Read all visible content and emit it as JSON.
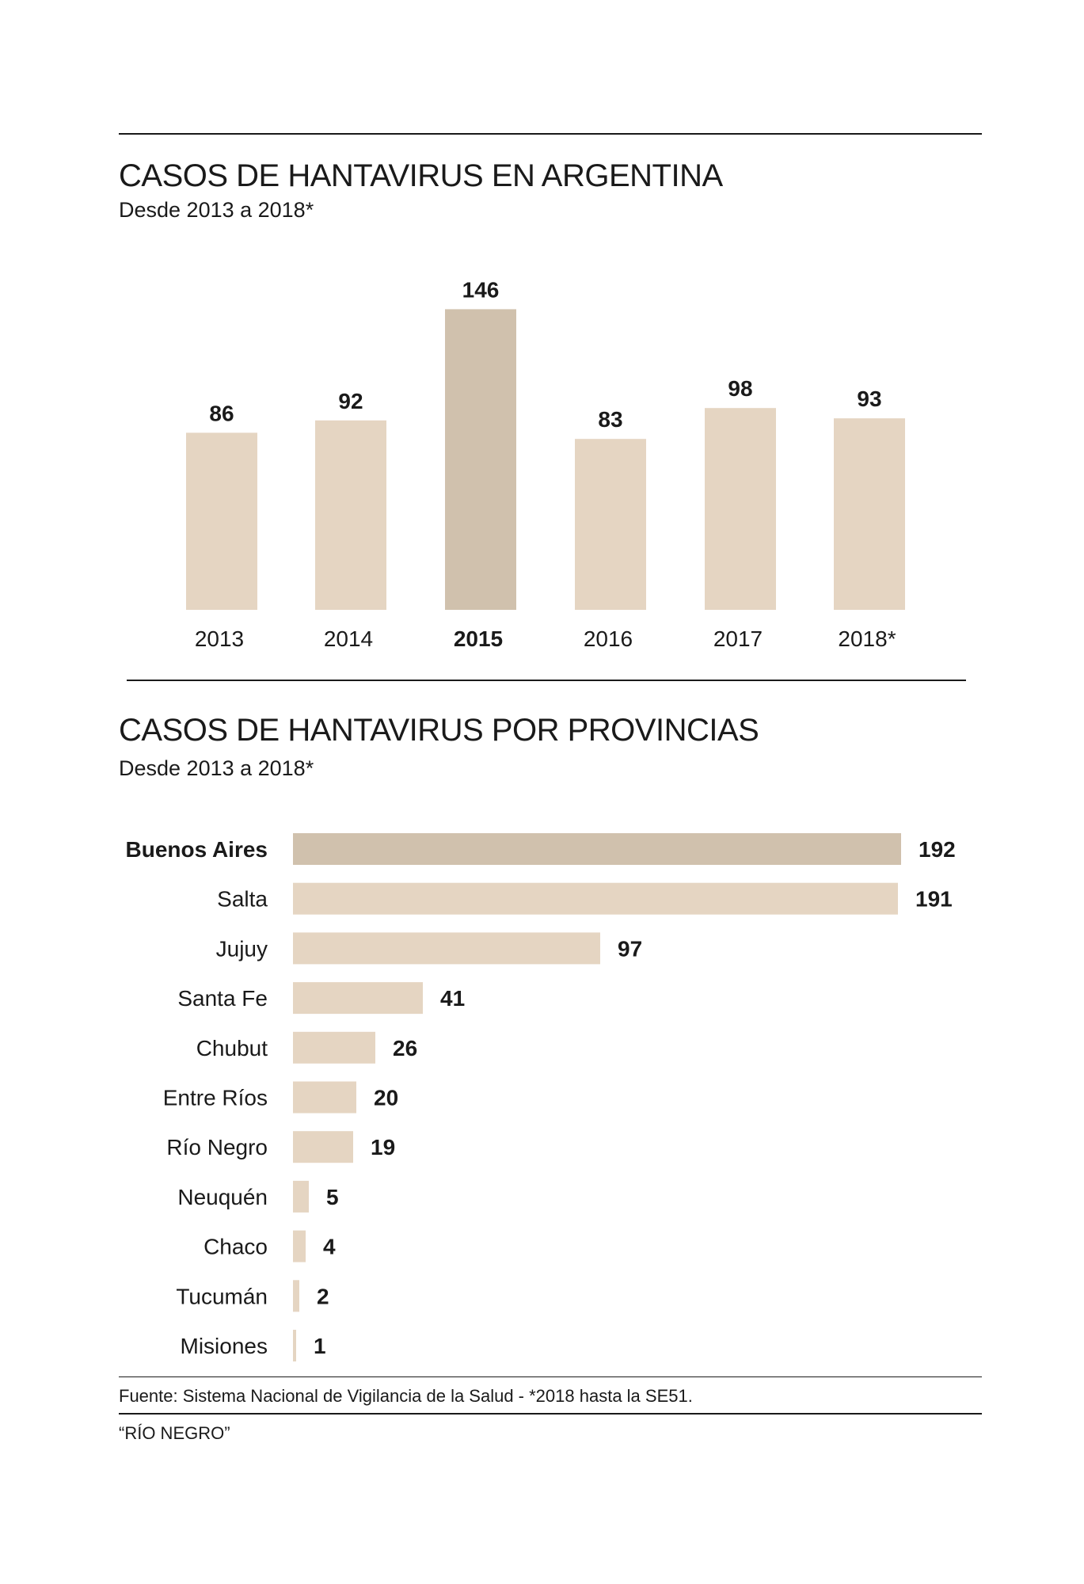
{
  "chart_data": [
    {
      "type": "bar",
      "title": "CASOS DE HANTAVIRUS EN ARGENTINA",
      "subtitle": "Desde 2013 a 2018*",
      "categories": [
        "2013",
        "2014",
        "2015",
        "2016",
        "2017",
        "2018*"
      ],
      "values": [
        86,
        92,
        146,
        83,
        98,
        93
      ],
      "highlight": "2015",
      "colors": {
        "bar": "#e5d5c2",
        "highlight": "#d0c1ad"
      }
    },
    {
      "type": "bar",
      "orientation": "horizontal",
      "title": "CASOS DE HANTAVIRUS POR PROVINCIAS",
      "subtitle": "Desde 2013 a 2018*",
      "categories": [
        "Buenos Aires",
        "Salta",
        "Jujuy",
        "Santa Fe",
        "Chubut",
        "Entre Ríos",
        "Río Negro",
        "Neuquén",
        "Chaco",
        "Tucumán",
        "Misiones"
      ],
      "values": [
        192,
        191,
        97,
        41,
        26,
        20,
        19,
        5,
        4,
        2,
        1
      ],
      "highlight": "Buenos Aires",
      "colors": {
        "bar": "#e5d5c2",
        "highlight": "#d0c1ad"
      }
    }
  ],
  "footer": {
    "source": "Fuente: Sistema Nacional de Vigilancia de la Salud - *2018 hasta la SE51.",
    "credit": "“RÍO NEGRO”"
  }
}
